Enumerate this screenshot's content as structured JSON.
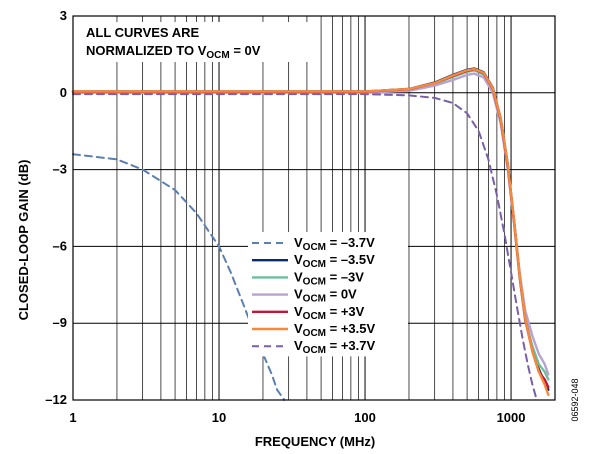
{
  "chart_data": {
    "type": "line",
    "xlabel": "FREQUENCY (MHz)",
    "ylabel": "CLOSED-LOOP GAIN (dB)",
    "x_scale": "log",
    "xlim": [
      1,
      2000
    ],
    "ylim": [
      -12,
      3
    ],
    "x_ticks": [
      1,
      10,
      100,
      1000
    ],
    "x_tick_labels": [
      "1",
      "10",
      "100",
      "1000"
    ],
    "y_ticks": [
      3,
      0,
      -3,
      -6,
      -9,
      -12
    ],
    "y_tick_labels": [
      "3",
      "0",
      "–3",
      "–6",
      "–9",
      "–12"
    ],
    "grid": true,
    "annotation": {
      "line1": "ALL CURVES ARE",
      "line2_prefix": "NORMALIZED TO V",
      "line2_sub": "OCM",
      "line2_suffix": " = 0V"
    },
    "legend_position": "center-right",
    "series": [
      {
        "name": "V",
        "sub": "OCM",
        "suffix": " = –3.7V",
        "color": "#5a7fb0",
        "dash": true,
        "points": [
          [
            1,
            -2.4
          ],
          [
            2,
            -2.6
          ],
          [
            3,
            -3.0
          ],
          [
            5,
            -3.8
          ],
          [
            7,
            -4.7
          ],
          [
            10,
            -6.0
          ],
          [
            12,
            -7.0
          ],
          [
            15,
            -8.4
          ],
          [
            18,
            -9.6
          ],
          [
            20,
            -10.2
          ],
          [
            23,
            -11.0
          ],
          [
            25,
            -11.6
          ],
          [
            28,
            -12.0
          ]
        ]
      },
      {
        "name": "V",
        "sub": "OCM",
        "suffix": " = –3.5V",
        "color": "#0a2b6b",
        "dash": false,
        "points": [
          [
            1,
            0.05
          ],
          [
            10,
            0.05
          ],
          [
            100,
            0.05
          ],
          [
            200,
            0.15
          ],
          [
            300,
            0.4
          ],
          [
            400,
            0.7
          ],
          [
            500,
            0.9
          ],
          [
            560,
            0.95
          ],
          [
            650,
            0.8
          ],
          [
            750,
            0.2
          ],
          [
            850,
            -1.0
          ],
          [
            950,
            -2.8
          ],
          [
            1050,
            -5.0
          ],
          [
            1150,
            -7.2
          ],
          [
            1250,
            -8.8
          ],
          [
            1400,
            -10.0
          ],
          [
            1550,
            -10.8
          ],
          [
            1700,
            -11.3
          ],
          [
            1800,
            -11.6
          ]
        ]
      },
      {
        "name": "V",
        "sub": "OCM",
        "suffix": " = –3V",
        "color": "#6cbf9a",
        "dash": false,
        "points": [
          [
            1,
            0.03
          ],
          [
            10,
            0.03
          ],
          [
            100,
            0.03
          ],
          [
            200,
            0.12
          ],
          [
            300,
            0.35
          ],
          [
            400,
            0.62
          ],
          [
            500,
            0.82
          ],
          [
            560,
            0.88
          ],
          [
            650,
            0.72
          ],
          [
            750,
            0.12
          ],
          [
            850,
            -1.1
          ],
          [
            950,
            -2.9
          ],
          [
            1050,
            -5.1
          ],
          [
            1150,
            -7.3
          ],
          [
            1250,
            -8.9
          ],
          [
            1400,
            -9.9
          ],
          [
            1550,
            -10.6
          ],
          [
            1700,
            -10.9
          ],
          [
            1800,
            -11.2
          ]
        ]
      },
      {
        "name": "V",
        "sub": "OCM",
        "suffix": " = 0V",
        "color": "#b7a3d0",
        "dash": false,
        "points": [
          [
            1,
            0
          ],
          [
            10,
            0
          ],
          [
            100,
            0
          ],
          [
            200,
            0.08
          ],
          [
            300,
            0.28
          ],
          [
            400,
            0.5
          ],
          [
            500,
            0.7
          ],
          [
            560,
            0.75
          ],
          [
            650,
            0.6
          ],
          [
            750,
            0.0
          ],
          [
            850,
            -1.2
          ],
          [
            950,
            -3.0
          ],
          [
            1050,
            -5.1
          ],
          [
            1150,
            -7.1
          ],
          [
            1250,
            -8.5
          ],
          [
            1400,
            -9.5
          ],
          [
            1550,
            -10.2
          ],
          [
            1700,
            -10.6
          ],
          [
            1800,
            -11.0
          ]
        ]
      },
      {
        "name": "V",
        "sub": "OCM",
        "suffix": " = +3V",
        "color": "#c4143c",
        "dash": false,
        "points": [
          [
            1,
            0.04
          ],
          [
            10,
            0.04
          ],
          [
            100,
            0.04
          ],
          [
            200,
            0.14
          ],
          [
            300,
            0.38
          ],
          [
            400,
            0.66
          ],
          [
            500,
            0.86
          ],
          [
            560,
            0.92
          ],
          [
            650,
            0.76
          ],
          [
            750,
            0.16
          ],
          [
            850,
            -1.05
          ],
          [
            950,
            -2.85
          ],
          [
            1050,
            -5.05
          ],
          [
            1150,
            -7.25
          ],
          [
            1250,
            -8.85
          ],
          [
            1400,
            -10.1
          ],
          [
            1550,
            -10.9
          ],
          [
            1700,
            -11.2
          ],
          [
            1800,
            -11.5
          ]
        ]
      },
      {
        "name": "V",
        "sub": "OCM",
        "suffix": " = +3.5V",
        "color": "#f58a3a",
        "dash": false,
        "points": [
          [
            1,
            0.05
          ],
          [
            10,
            0.05
          ],
          [
            100,
            0.05
          ],
          [
            200,
            0.15
          ],
          [
            300,
            0.38
          ],
          [
            400,
            0.68
          ],
          [
            500,
            0.88
          ],
          [
            560,
            0.93
          ],
          [
            650,
            0.78
          ],
          [
            750,
            0.18
          ],
          [
            850,
            -1.0
          ],
          [
            950,
            -2.8
          ],
          [
            1050,
            -5.0
          ],
          [
            1150,
            -7.2
          ],
          [
            1250,
            -8.8
          ],
          [
            1400,
            -10.1
          ],
          [
            1550,
            -10.9
          ],
          [
            1700,
            -11.4
          ],
          [
            1800,
            -11.8
          ]
        ]
      },
      {
        "name": "V",
        "sub": "OCM",
        "suffix": " = +3.7V",
        "color": "#7a5fa8",
        "dash": true,
        "points": [
          [
            1,
            -0.05
          ],
          [
            10,
            -0.05
          ],
          [
            100,
            -0.05
          ],
          [
            200,
            -0.1
          ],
          [
            300,
            -0.2
          ],
          [
            400,
            -0.4
          ],
          [
            500,
            -0.8
          ],
          [
            600,
            -1.5
          ],
          [
            700,
            -2.6
          ],
          [
            800,
            -4.0
          ],
          [
            900,
            -5.5
          ],
          [
            1000,
            -7.0
          ],
          [
            1100,
            -8.4
          ],
          [
            1200,
            -9.6
          ],
          [
            1300,
            -10.6
          ],
          [
            1400,
            -11.4
          ],
          [
            1500,
            -12.0
          ]
        ]
      }
    ]
  },
  "figure_id": "06592-048"
}
